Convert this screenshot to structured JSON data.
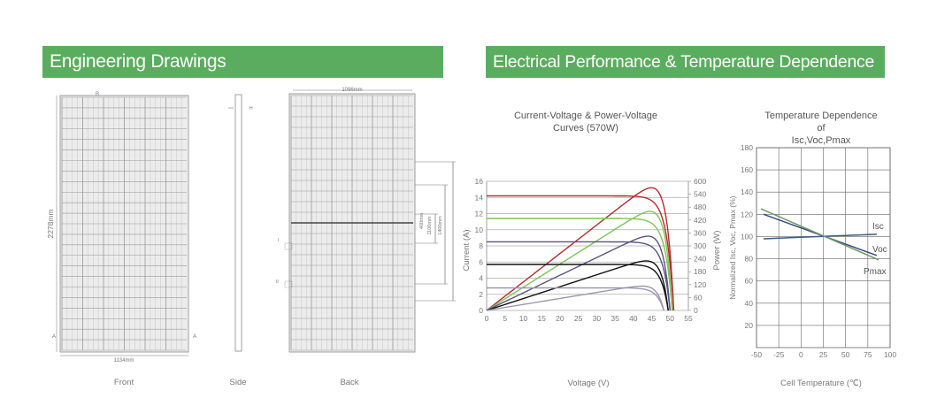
{
  "sections": {
    "engineering_title": "Engineering Drawings",
    "electrical_title": "Electrical Performance & Temperature Dependence"
  },
  "drawings": {
    "front_label": "Front",
    "side_label": "Side",
    "back_label": "Back",
    "front_width": "1134mm",
    "front_height": "2278mm",
    "back_width": "1096mm",
    "dim_400": "400mm",
    "dim_1100": "1100mm",
    "dim_1400": "1400mm",
    "section_a": "A",
    "section_b": "B",
    "detail_i": "I",
    "detail_ii": "II",
    "side_h": "H"
  },
  "header_color": "#5aad5e",
  "chart_data": [
    {
      "type": "line",
      "title_line1": "Current-Voltage & Power-Voltage",
      "title_line2": "Curves (570W)",
      "xlabel": "Voltage (V)",
      "ylabel": "Current (A)",
      "y2label": "Power (W)",
      "xlim": [
        0,
        55
      ],
      "ylim": [
        0,
        16
      ],
      "y2lim": [
        0,
        600
      ],
      "xticks": [
        "0",
        "5",
        "10",
        "15",
        "20",
        "25",
        "30",
        "35",
        "40",
        "45",
        "50",
        "55"
      ],
      "yticks": [
        "0",
        "2",
        "4",
        "6",
        "8",
        "10",
        "12",
        "14",
        "16"
      ],
      "y2ticks": [
        "0",
        "60",
        "120",
        "180",
        "240",
        "300",
        "360",
        "420",
        "480",
        "540",
        "600"
      ],
      "grid": true,
      "series": [
        {
          "color": "#b52a2f",
          "isc": 14.2,
          "voc": 51.0,
          "pmax": 570,
          "vmp": 42
        },
        {
          "color": "#7cc45a",
          "isc": 11.4,
          "voc": 50.6,
          "pmax": 460,
          "vmp": 42
        },
        {
          "color": "#5a5482",
          "isc": 8.5,
          "voc": 50.0,
          "pmax": 345,
          "vmp": 42
        },
        {
          "color": "#111111",
          "isc": 5.7,
          "voc": 49.5,
          "pmax": 230,
          "vmp": 42
        },
        {
          "color": "#9a98b0",
          "isc": 2.8,
          "voc": 48.3,
          "pmax": 113,
          "vmp": 41
        }
      ]
    },
    {
      "type": "line",
      "title_line1": "Temperature Dependence of",
      "title_line2": "Isc,Voc,Pmax",
      "xlabel": "Cell Temperature (℃)",
      "ylabel": "Normalized Isc, Voc, Pmax (%)",
      "xlim": [
        -50,
        100
      ],
      "ylim": [
        0,
        180
      ],
      "xticks": [
        "-50",
        "-25",
        "0",
        "25",
        "50",
        "75",
        "100"
      ],
      "yticks": [
        "20",
        "40",
        "60",
        "80",
        "100",
        "120",
        "140",
        "160",
        "180"
      ],
      "grid": true,
      "series": [
        {
          "name": "Isc",
          "color": "#3d5a80",
          "x": [
            -42,
            85
          ],
          "y": [
            98,
            102
          ]
        },
        {
          "name": "Voc",
          "color": "#3b4a7a",
          "x": [
            -42,
            85
          ],
          "y": [
            120,
            83
          ]
        },
        {
          "name": "Pmax",
          "color": "#6a9a6a",
          "x": [
            -45,
            87
          ],
          "y": [
            125,
            79
          ]
        }
      ]
    }
  ]
}
